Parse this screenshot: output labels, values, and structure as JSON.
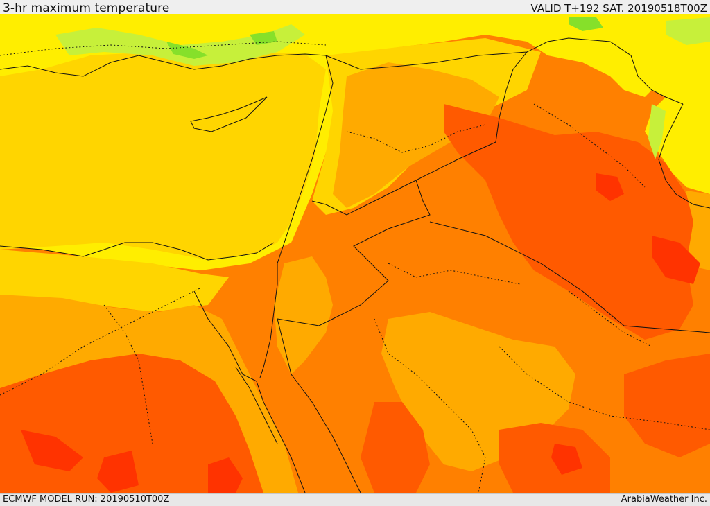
{
  "header": {
    "title": "3-hr maximum temperature",
    "valid": "VALID T+192 SAT. 20190518T00Z"
  },
  "footer": {
    "model_run": "ECMWF MODEL RUN: 20190510T00Z",
    "credit": "ArabiaWeather Inc."
  },
  "palette": {
    "green": "#86e02a",
    "light_green": "#c7f03a",
    "yellow": "#ffee00",
    "gold": "#ffd500",
    "amber": "#ffaa00",
    "orange": "#ff8000",
    "red_orange": "#ff5a00",
    "red": "#ff3300"
  }
}
